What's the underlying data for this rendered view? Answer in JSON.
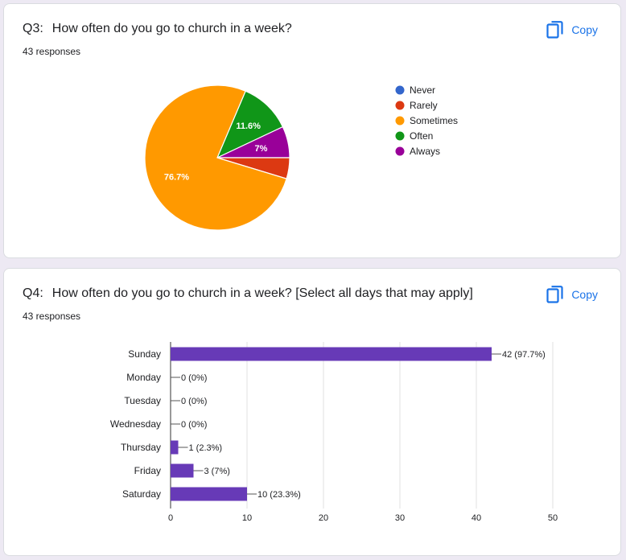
{
  "q3": {
    "number": "Q3:",
    "title": "How often do you go to church in a week?",
    "responses": "43 responses",
    "copy_label": "Copy",
    "icons": {
      "copy": "copy-icon"
    },
    "chart_data": {
      "type": "pie",
      "title": "",
      "slices": [
        {
          "label": "Never",
          "value": 0,
          "color": "#3366cc",
          "display": ""
        },
        {
          "label": "Rarely",
          "value": 4.7,
          "color": "#dc3912",
          "display": ""
        },
        {
          "label": "Sometimes",
          "value": 76.7,
          "color": "#ff9900",
          "display": "76.7%"
        },
        {
          "label": "Often",
          "value": 11.6,
          "color": "#109618",
          "display": "11.6%"
        },
        {
          "label": "Always",
          "value": 7,
          "color": "#990099",
          "display": "7%"
        }
      ],
      "legend": "right"
    }
  },
  "q4": {
    "number": "Q4:",
    "title": "How often do you go to church in a week? [Select all days that may apply]",
    "responses": "43 responses",
    "copy_label": "Copy",
    "icons": {
      "copy": "copy-icon"
    },
    "chart_data": {
      "type": "bar",
      "orientation": "horizontal",
      "categories": [
        "Sunday",
        "Monday",
        "Tuesday",
        "Wednesday",
        "Thursday",
        "Friday",
        "Saturday"
      ],
      "values": [
        42,
        0,
        0,
        0,
        1,
        3,
        10
      ],
      "labels": [
        "42 (97.7%)",
        "0 (0%)",
        "0 (0%)",
        "0 (0%)",
        "1 (2.3%)",
        "3 (7%)",
        "10 (23.3%)"
      ],
      "xlim": [
        0,
        50
      ],
      "xticks": [
        0,
        10,
        20,
        30,
        40,
        50
      ],
      "bar_color": "#673ab7",
      "grid": true
    }
  }
}
